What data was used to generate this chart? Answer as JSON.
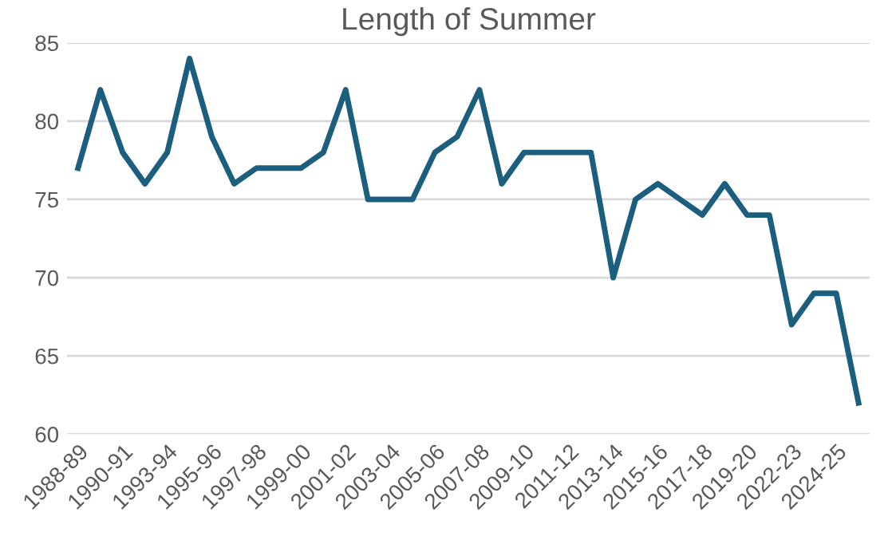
{
  "chart_data": {
    "type": "line",
    "title": "Length of Summer",
    "categories": [
      "1988-89",
      null,
      "1990-91",
      null,
      "1993-94",
      null,
      "1995-96",
      null,
      "1997-98",
      null,
      "1999-00",
      null,
      "2001-02",
      null,
      "2003-04",
      null,
      "2005-06",
      null,
      "2007-08",
      null,
      "2009-10",
      null,
      "2011-12",
      null,
      "2013-14",
      null,
      "2015-16",
      null,
      "2017-18",
      null,
      "2019-20",
      null,
      "2022-23",
      null,
      "2024-25",
      null
    ],
    "series": [
      {
        "color": "#1b5e7e",
        "values": [
          77,
          82,
          78,
          76,
          78,
          84,
          79,
          76,
          77,
          77,
          77,
          78,
          82,
          75,
          75,
          75,
          78,
          79,
          82,
          76,
          78,
          78,
          78,
          78,
          70,
          75,
          76,
          75,
          74,
          76,
          74,
          74,
          67,
          69,
          69,
          62
        ]
      }
    ],
    "ylim": [
      60,
      85
    ],
    "yticks": [
      60,
      65,
      70,
      75,
      80,
      85
    ],
    "grid": "y",
    "legend": false,
    "marker": "none",
    "line_style": "solid"
  }
}
